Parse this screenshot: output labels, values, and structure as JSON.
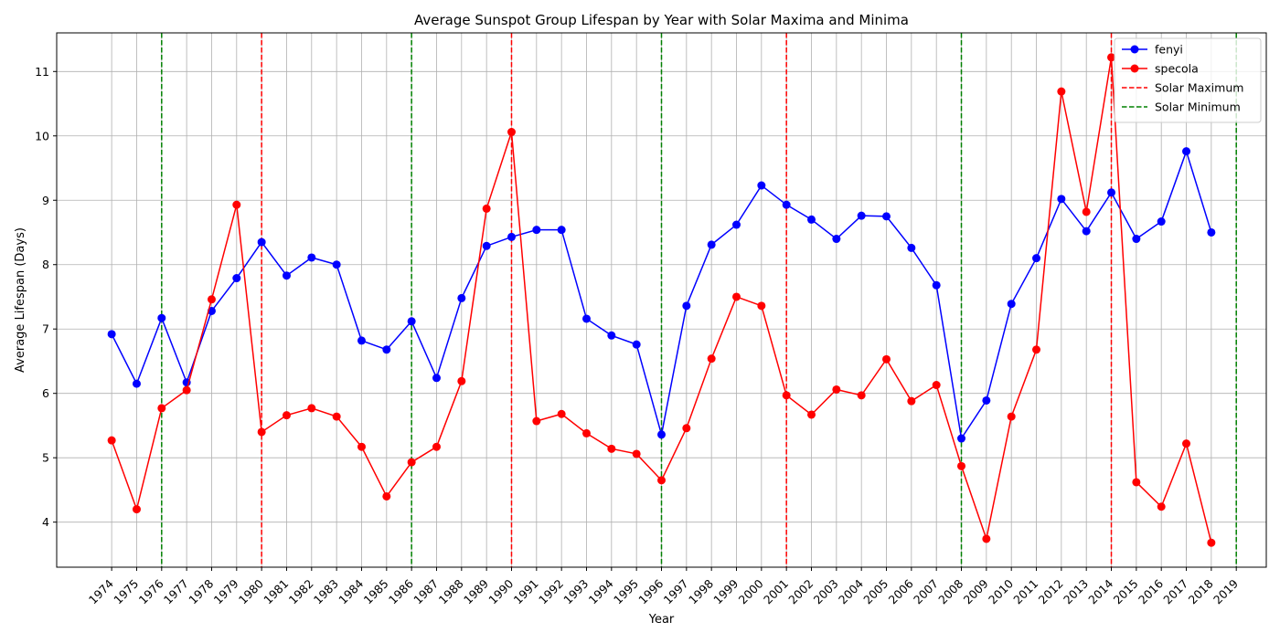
{
  "chart_data": {
    "type": "line",
    "title": "Average Sunspot Group Lifespan by Year with Solar Maxima and Minima",
    "xlabel": "Year",
    "ylabel": "Average Lifespan (Days)",
    "x": [
      1974,
      1975,
      1976,
      1977,
      1978,
      1979,
      1980,
      1981,
      1982,
      1983,
      1984,
      1985,
      1986,
      1987,
      1988,
      1989,
      1990,
      1991,
      1992,
      1993,
      1994,
      1995,
      1996,
      1997,
      1998,
      1999,
      2000,
      2001,
      2002,
      2003,
      2004,
      2005,
      2006,
      2007,
      2008,
      2009,
      2010,
      2011,
      2012,
      2013,
      2014,
      2015,
      2016,
      2017,
      2018
    ],
    "xticks": [
      "1974",
      "1975",
      "1976",
      "1977",
      "1978",
      "1979",
      "1980",
      "1981",
      "1982",
      "1983",
      "1984",
      "1985",
      "1986",
      "1987",
      "1988",
      "1989",
      "1990",
      "1991",
      "1992",
      "1993",
      "1994",
      "1995",
      "1996",
      "1997",
      "1998",
      "1999",
      "2000",
      "2001",
      "2002",
      "2003",
      "2004",
      "2005",
      "2006",
      "2007",
      "2008",
      "2009",
      "2010",
      "2011",
      "2012",
      "2013",
      "2014",
      "2015",
      "2016",
      "2017",
      "2018",
      "2019"
    ],
    "xlim": [
      1971.8,
      2020.2
    ],
    "ylim": [
      3.3,
      11.6
    ],
    "yticks": [
      "4",
      "5",
      "6",
      "7",
      "8",
      "9",
      "10",
      "11"
    ],
    "grid": true,
    "legend_position": "top-right",
    "series": [
      {
        "name": "fenyi",
        "color": "#0000ff",
        "values": [
          6.92,
          6.15,
          7.17,
          6.17,
          7.28,
          7.79,
          8.35,
          7.83,
          8.11,
          8.0,
          6.82,
          6.68,
          7.12,
          6.24,
          7.48,
          8.29,
          8.43,
          8.54,
          8.54,
          7.16,
          6.9,
          6.76,
          5.36,
          7.36,
          8.31,
          8.62,
          9.23,
          8.93,
          8.7,
          8.4,
          8.76,
          8.75,
          8.26,
          7.68,
          5.3,
          5.89,
          7.39,
          8.1,
          9.02,
          8.52,
          9.12,
          8.4,
          8.67,
          9.76,
          8.5
        ]
      },
      {
        "name": "specola",
        "color": "#ff0000",
        "values": [
          5.27,
          4.2,
          5.77,
          6.05,
          7.46,
          8.93,
          5.4,
          5.66,
          5.77,
          5.64,
          5.17,
          4.4,
          4.93,
          5.17,
          6.19,
          8.87,
          10.06,
          5.57,
          5.68,
          5.38,
          5.14,
          5.06,
          4.65,
          5.46,
          6.54,
          7.5,
          7.36,
          5.97,
          5.67,
          6.06,
          5.97,
          6.53,
          5.88,
          6.13,
          4.87,
          3.74,
          5.64,
          6.68,
          10.69,
          8.82,
          11.22,
          4.62,
          4.24,
          5.22,
          3.68
        ]
      }
    ],
    "solar_maximum": {
      "name": "Solar Maximum",
      "color": "#ff0000",
      "years": [
        1980,
        1990,
        2001,
        2014
      ]
    },
    "solar_minimum": {
      "name": "Solar Minimum",
      "color": "#008000",
      "years": [
        1976,
        1986,
        1996,
        2008,
        2019
      ]
    }
  }
}
